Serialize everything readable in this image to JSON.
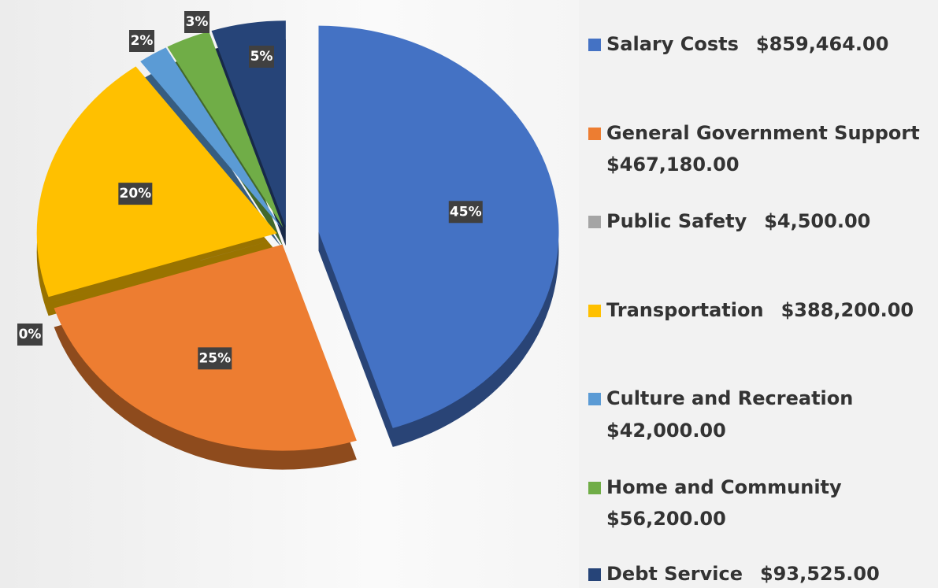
{
  "chart_data": {
    "type": "pie",
    "categories": [
      "Salary Costs",
      "General Government Support",
      "Public Safety",
      "Transportation",
      "Culture and Recreation",
      "Home and Community",
      "Debt Service"
    ],
    "amount_labels": [
      "$859,464.00",
      "$467,180.00",
      "$4,500.00",
      "$388,200.00",
      "$42,000.00",
      "$56,200.00",
      "$93,525.00"
    ],
    "values": [
      45,
      25,
      0,
      20,
      2,
      3,
      5
    ],
    "value_labels": [
      "45%",
      "25%",
      "0%",
      "20%",
      "2%",
      "3%",
      "5%"
    ],
    "colors": [
      "#4472c4",
      "#ed7d31",
      "#a5a5a5",
      "#ffc000",
      "#5b9bd5",
      "#70ad47",
      "#264478"
    ],
    "legend": "right"
  }
}
